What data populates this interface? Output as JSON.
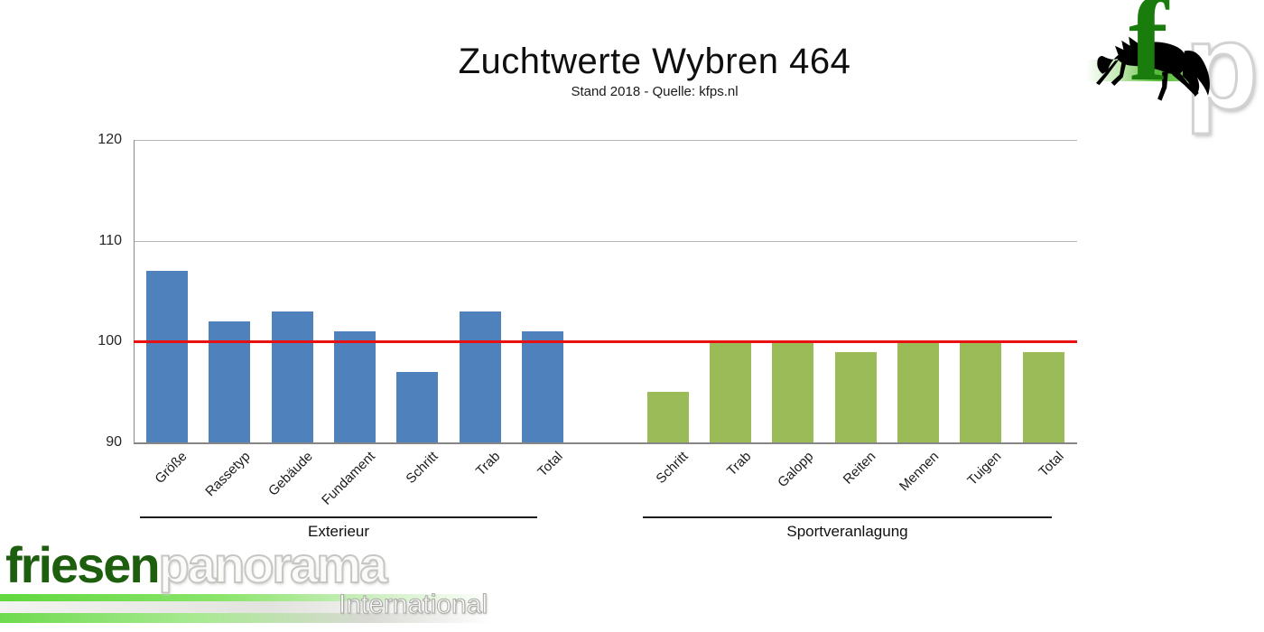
{
  "header": {
    "title": "Zuchtwerte Wybren 464",
    "subtitle": "Stand 2018 - Quelle: kfps.nl"
  },
  "chart_data": {
    "type": "bar",
    "title": "Zuchtwerte Wybren 464",
    "subtitle": "Stand 2018 - Quelle: kfps.nl",
    "ylim": [
      90,
      120
    ],
    "yticks": [
      90,
      100,
      110,
      120
    ],
    "grid": true,
    "legend_position": "none",
    "reference_line": {
      "value": 100,
      "color": "#e81010"
    },
    "groups": [
      {
        "label": "Exterieur",
        "color": "#4f81bd",
        "categories": [
          "Größe",
          "Rassetyp",
          "Gebäude",
          "Fundament",
          "Schritt",
          "Trab",
          "Total"
        ],
        "values": [
          107,
          102,
          103,
          101,
          97,
          103,
          101
        ]
      },
      {
        "label": "Sportveranlagung",
        "color": "#9bbb59",
        "categories": [
          "Schritt",
          "Trab",
          "Galopp",
          "Reiten",
          "Mennen",
          "Tuigen",
          "Total"
        ],
        "values": [
          95,
          100,
          100,
          99,
          100,
          100,
          99
        ]
      }
    ]
  },
  "logo_corner": {
    "letter_f": "f",
    "letter_p": "p",
    "horse_icon": "friesian-horse",
    "green": "#1b7c0e"
  },
  "logo_footer": {
    "brand_green": "friesen",
    "brand_white": "panorama",
    "tagline": "International",
    "green": "#1d5e0f"
  }
}
